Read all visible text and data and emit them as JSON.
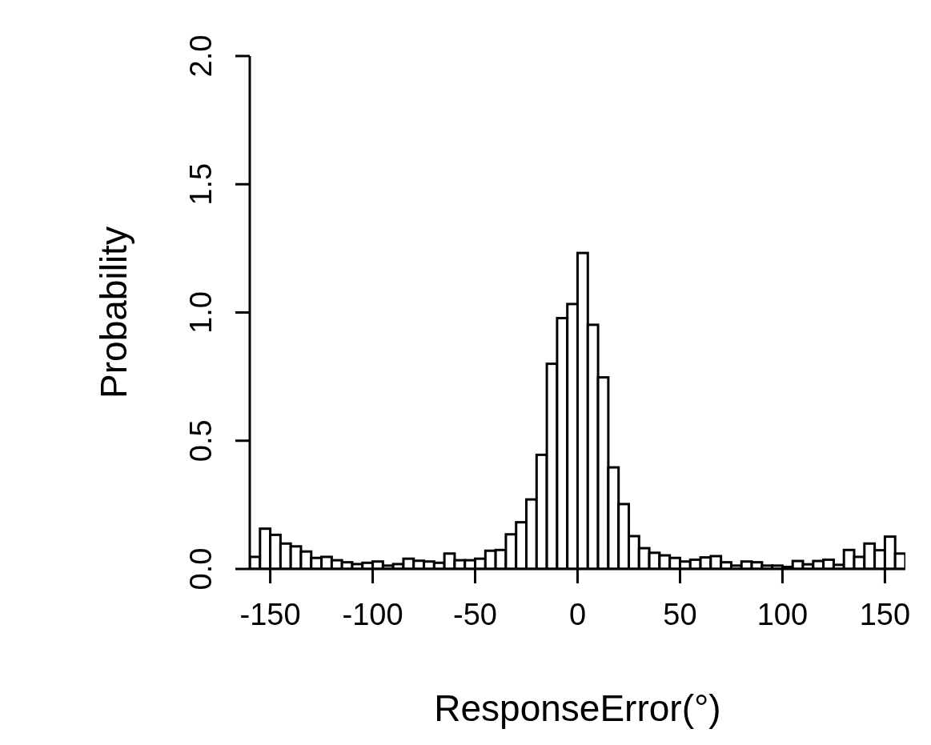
{
  "chart_data": {
    "type": "histogram",
    "xlabel": "ResponseError(°)",
    "ylabel": "Probability",
    "bins": [
      -160,
      -155,
      -150,
      -145,
      -140,
      -135,
      -130,
      -125,
      -120,
      -115,
      -110,
      -105,
      -100,
      -95,
      -90,
      -85,
      -80,
      -75,
      -70,
      -65,
      -60,
      -55,
      -50,
      -45,
      -40,
      -35,
      -30,
      -25,
      -20,
      -15,
      -10,
      -5,
      0,
      5,
      10,
      15,
      20,
      25,
      30,
      35,
      40,
      45,
      50,
      55,
      60,
      65,
      70,
      75,
      80,
      85,
      90,
      95,
      100,
      105,
      110,
      115,
      120,
      125,
      130,
      135,
      140,
      145,
      150,
      155,
      160
    ],
    "values": [
      0.047,
      0.157,
      0.133,
      0.099,
      0.088,
      0.068,
      0.043,
      0.047,
      0.034,
      0.026,
      0.019,
      0.024,
      0.029,
      0.013,
      0.019,
      0.04,
      0.032,
      0.029,
      0.024,
      0.06,
      0.034,
      0.034,
      0.04,
      0.071,
      0.074,
      0.135,
      0.182,
      0.271,
      0.445,
      0.8,
      0.978,
      1.033,
      1.232,
      0.952,
      0.747,
      0.396,
      0.253,
      0.128,
      0.081,
      0.063,
      0.053,
      0.043,
      0.029,
      0.036,
      0.045,
      0.05,
      0.026,
      0.013,
      0.029,
      0.026,
      0.013,
      0.013,
      0.008,
      0.031,
      0.018,
      0.031,
      0.036,
      0.016,
      0.074,
      0.047,
      0.099,
      0.073,
      0.126,
      0.06
    ],
    "color": "#ffffff",
    "xlim": [
      -160,
      160
    ],
    "xticks": [
      -150,
      -100,
      -50,
      0,
      50,
      100,
      150
    ],
    "ylim": [
      0,
      2
    ],
    "yticks": [
      {
        "value": 0,
        "label": "0.0"
      },
      {
        "value": 0.5,
        "label": "0.5"
      },
      {
        "value": 1,
        "label": "1.0"
      },
      {
        "value": 1.5,
        "label": "1.5"
      },
      {
        "value": 2,
        "label": "2.0"
      }
    ],
    "grid": false,
    "legend": false
  }
}
